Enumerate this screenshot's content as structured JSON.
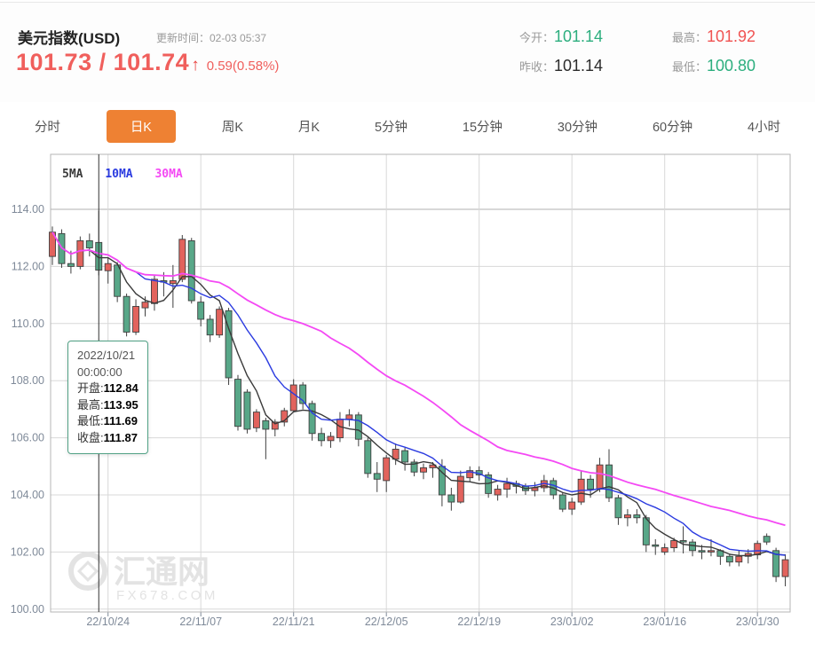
{
  "header": {
    "title": "美元指数(USD)",
    "update_label": "更新时间：02-03 05:37",
    "bid": "101.73",
    "separator": " / ",
    "ask": "101.74",
    "arrow": "↑",
    "change": "0.59(0.58%)",
    "price_color": "#f05f5c",
    "stats": [
      {
        "label": "今开：",
        "value": "101.14",
        "color": "green"
      },
      {
        "label": "昨收：",
        "value": "101.14",
        "color": "dark"
      },
      {
        "label": "最高：",
        "value": "101.92",
        "color": "red"
      },
      {
        "label": "最低：",
        "value": "100.80",
        "color": "green"
      }
    ]
  },
  "tabs": {
    "active": "日K",
    "items": [
      {
        "label": "分时"
      },
      {
        "label": "日K"
      },
      {
        "label": "周K"
      },
      {
        "label": "月K"
      },
      {
        "label": "5分钟"
      },
      {
        "label": "15分钟"
      },
      {
        "label": "30分钟"
      },
      {
        "label": "60分钟"
      },
      {
        "label": "4小时"
      }
    ]
  },
  "legend": {
    "items": [
      {
        "label": "5MA",
        "color": "#3a3a3a"
      },
      {
        "label": "10MA",
        "color": "#2b3be0"
      },
      {
        "label": "30MA",
        "color": "#f449f4"
      }
    ]
  },
  "tooltip": {
    "date": "2022/10/21",
    "time": "00:00:00",
    "rows": [
      {
        "label": "开盘:",
        "value": "112.84"
      },
      {
        "label": "最高:",
        "value": "113.95"
      },
      {
        "label": "最低:",
        "value": "111.69"
      },
      {
        "label": "收盘:",
        "value": "111.87"
      }
    ]
  },
  "watermark": {
    "name": "汇通网",
    "site": "FX678.COM"
  },
  "chart_data": {
    "type": "candlestick",
    "title": "美元指数(USD) 日K",
    "ylim": [
      100,
      114.6
    ],
    "grid": true,
    "y_ticks": [
      114,
      112,
      110,
      108,
      106,
      104,
      102,
      100
    ],
    "x_tick_labels": [
      "22/10/24",
      "22/11/07",
      "22/11/21",
      "22/12/05",
      "22/12/19",
      "23/01/02",
      "23/01/16",
      "23/01/30"
    ],
    "x_tick_indices": [
      6,
      16,
      26,
      36,
      46,
      56,
      66,
      76
    ],
    "selected_index": 5,
    "ma_periods": [
      5,
      10,
      30
    ],
    "colors": {
      "up": "#e2635d",
      "down": "#58a788",
      "candle_stroke": "#3f3f3f",
      "ma5": "#3a3a3a",
      "ma10": "#2b3be0",
      "ma30": "#f449f4",
      "grid": "#d8d8d8",
      "border": "#b5b5b5",
      "axis_text": "#7f8a99",
      "crosshair": "#333333",
      "watermark": "#e3e3e3"
    },
    "candles": [
      {
        "d": "22/10/14",
        "o": 112.35,
        "h": 113.4,
        "l": 112.05,
        "c": 113.2
      },
      {
        "d": "22/10/17",
        "o": 113.15,
        "h": 113.3,
        "l": 111.95,
        "c": 112.1
      },
      {
        "d": "22/10/18",
        "o": 112.1,
        "h": 112.55,
        "l": 111.75,
        "c": 112.0
      },
      {
        "d": "22/10/19",
        "o": 112.0,
        "h": 113.05,
        "l": 111.9,
        "c": 112.9
      },
      {
        "d": "22/10/20",
        "o": 112.9,
        "h": 113.15,
        "l": 112.35,
        "c": 112.65
      },
      {
        "d": "22/10/21",
        "o": 112.84,
        "h": 113.95,
        "l": 111.69,
        "c": 111.87
      },
      {
        "d": "22/10/24",
        "o": 111.85,
        "h": 112.3,
        "l": 111.4,
        "c": 112.1
      },
      {
        "d": "22/10/25",
        "o": 112.05,
        "h": 112.15,
        "l": 110.75,
        "c": 110.95
      },
      {
        "d": "22/10/26",
        "o": 110.95,
        "h": 111.05,
        "l": 109.55,
        "c": 109.7
      },
      {
        "d": "22/10/27",
        "o": 109.7,
        "h": 110.85,
        "l": 109.6,
        "c": 110.6
      },
      {
        "d": "22/10/28",
        "o": 110.55,
        "h": 110.95,
        "l": 110.25,
        "c": 110.75
      },
      {
        "d": "22/10/31",
        "o": 110.7,
        "h": 111.7,
        "l": 110.45,
        "c": 111.55
      },
      {
        "d": "22/11/01",
        "o": 111.5,
        "h": 111.8,
        "l": 110.95,
        "c": 111.45
      },
      {
        "d": "22/11/02",
        "o": 111.4,
        "h": 112.05,
        "l": 110.55,
        "c": 111.5
      },
      {
        "d": "22/11/03",
        "o": 111.55,
        "h": 113.1,
        "l": 111.45,
        "c": 112.95
      },
      {
        "d": "22/11/04",
        "o": 112.9,
        "h": 113.0,
        "l": 110.7,
        "c": 110.8
      },
      {
        "d": "22/11/07",
        "o": 110.75,
        "h": 110.95,
        "l": 109.9,
        "c": 110.15
      },
      {
        "d": "22/11/08",
        "o": 110.15,
        "h": 110.3,
        "l": 109.35,
        "c": 109.6
      },
      {
        "d": "22/11/09",
        "o": 109.6,
        "h": 110.6,
        "l": 109.5,
        "c": 110.5
      },
      {
        "d": "22/11/10",
        "o": 110.45,
        "h": 110.55,
        "l": 107.85,
        "c": 108.1
      },
      {
        "d": "22/11/11",
        "o": 108.05,
        "h": 108.2,
        "l": 106.25,
        "c": 106.4
      },
      {
        "d": "22/11/14",
        "o": 107.6,
        "h": 107.7,
        "l": 106.15,
        "c": 106.3
      },
      {
        "d": "22/11/15",
        "o": 106.35,
        "h": 107.0,
        "l": 106.2,
        "c": 106.9
      },
      {
        "d": "22/11/16",
        "o": 106.6,
        "h": 106.7,
        "l": 105.25,
        "c": 106.3
      },
      {
        "d": "22/11/17",
        "o": 106.3,
        "h": 106.65,
        "l": 106.05,
        "c": 106.55
      },
      {
        "d": "22/11/18",
        "o": 106.55,
        "h": 107.05,
        "l": 106.4,
        "c": 106.95
      },
      {
        "d": "22/11/21",
        "o": 106.95,
        "h": 108.05,
        "l": 106.9,
        "c": 107.85
      },
      {
        "d": "22/11/22",
        "o": 107.85,
        "h": 107.95,
        "l": 107.0,
        "c": 107.2
      },
      {
        "d": "22/11/23",
        "o": 107.2,
        "h": 107.3,
        "l": 105.9,
        "c": 106.15
      },
      {
        "d": "22/11/24",
        "o": 106.15,
        "h": 106.35,
        "l": 105.7,
        "c": 105.9
      },
      {
        "d": "22/11/25",
        "o": 105.9,
        "h": 106.2,
        "l": 105.65,
        "c": 106.05
      },
      {
        "d": "22/11/28",
        "o": 106.0,
        "h": 106.9,
        "l": 105.85,
        "c": 106.65
      },
      {
        "d": "22/11/29",
        "o": 106.65,
        "h": 107.0,
        "l": 106.4,
        "c": 106.8
      },
      {
        "d": "22/11/30",
        "o": 106.8,
        "h": 106.9,
        "l": 105.7,
        "c": 105.95
      },
      {
        "d": "22/12/01",
        "o": 105.9,
        "h": 106.0,
        "l": 104.6,
        "c": 104.75
      },
      {
        "d": "22/12/02",
        "o": 104.75,
        "h": 105.15,
        "l": 104.1,
        "c": 104.55
      },
      {
        "d": "22/12/05",
        "o": 104.5,
        "h": 105.4,
        "l": 104.1,
        "c": 105.3
      },
      {
        "d": "22/12/06",
        "o": 105.25,
        "h": 105.8,
        "l": 105.05,
        "c": 105.6
      },
      {
        "d": "22/12/07",
        "o": 105.55,
        "h": 105.65,
        "l": 104.85,
        "c": 105.15
      },
      {
        "d": "22/12/08",
        "o": 105.15,
        "h": 105.25,
        "l": 104.65,
        "c": 104.8
      },
      {
        "d": "22/12/09",
        "o": 104.8,
        "h": 105.1,
        "l": 104.55,
        "c": 104.95
      },
      {
        "d": "22/12/12",
        "o": 104.95,
        "h": 105.15,
        "l": 104.6,
        "c": 105.05
      },
      {
        "d": "22/12/13",
        "o": 105.0,
        "h": 105.25,
        "l": 103.6,
        "c": 104.0
      },
      {
        "d": "22/12/14",
        "o": 104.0,
        "h": 104.25,
        "l": 103.45,
        "c": 103.75
      },
      {
        "d": "22/12/15",
        "o": 103.75,
        "h": 104.85,
        "l": 103.7,
        "c": 104.65
      },
      {
        "d": "22/12/16",
        "o": 104.6,
        "h": 105.0,
        "l": 104.45,
        "c": 104.85
      },
      {
        "d": "22/12/19",
        "o": 104.85,
        "h": 105.0,
        "l": 104.5,
        "c": 104.7
      },
      {
        "d": "22/12/20",
        "o": 104.7,
        "h": 104.8,
        "l": 103.9,
        "c": 104.05
      },
      {
        "d": "22/12/21",
        "o": 104.0,
        "h": 104.35,
        "l": 103.8,
        "c": 104.2
      },
      {
        "d": "22/12/22",
        "o": 104.2,
        "h": 104.6,
        "l": 103.9,
        "c": 104.4
      },
      {
        "d": "22/12/23",
        "o": 104.4,
        "h": 104.5,
        "l": 104.05,
        "c": 104.3
      },
      {
        "d": "22/12/26",
        "o": 104.3,
        "h": 104.4,
        "l": 104.0,
        "c": 104.15
      },
      {
        "d": "22/12/27",
        "o": 104.15,
        "h": 104.45,
        "l": 103.95,
        "c": 104.25
      },
      {
        "d": "22/12/28",
        "o": 104.25,
        "h": 104.7,
        "l": 104.1,
        "c": 104.5
      },
      {
        "d": "22/12/29",
        "o": 104.5,
        "h": 104.6,
        "l": 103.85,
        "c": 104.0
      },
      {
        "d": "22/12/30",
        "o": 104.0,
        "h": 104.1,
        "l": 103.4,
        "c": 103.5
      },
      {
        "d": "23/01/02",
        "o": 103.5,
        "h": 103.9,
        "l": 103.3,
        "c": 103.75
      },
      {
        "d": "23/01/03",
        "o": 103.75,
        "h": 104.85,
        "l": 103.65,
        "c": 104.55
      },
      {
        "d": "23/01/04",
        "o": 104.55,
        "h": 104.7,
        "l": 103.9,
        "c": 104.2
      },
      {
        "d": "23/01/05",
        "o": 104.2,
        "h": 105.3,
        "l": 104.1,
        "c": 105.05
      },
      {
        "d": "23/01/06",
        "o": 105.05,
        "h": 105.6,
        "l": 103.75,
        "c": 103.9
      },
      {
        "d": "23/01/09",
        "o": 103.9,
        "h": 104.0,
        "l": 102.95,
        "c": 103.2
      },
      {
        "d": "23/01/10",
        "o": 103.2,
        "h": 103.5,
        "l": 102.9,
        "c": 103.3
      },
      {
        "d": "23/01/11",
        "o": 103.3,
        "h": 103.5,
        "l": 103.0,
        "c": 103.2
      },
      {
        "d": "23/01/12",
        "o": 103.2,
        "h": 103.3,
        "l": 102.0,
        "c": 102.25
      },
      {
        "d": "23/01/13",
        "o": 102.25,
        "h": 102.45,
        "l": 101.9,
        "c": 102.2
      },
      {
        "d": "23/01/16",
        "o": 102.0,
        "h": 102.3,
        "l": 101.9,
        "c": 102.15
      },
      {
        "d": "23/01/17",
        "o": 102.15,
        "h": 102.5,
        "l": 102.0,
        "c": 102.4
      },
      {
        "d": "23/01/18",
        "o": 102.4,
        "h": 102.9,
        "l": 101.95,
        "c": 102.35
      },
      {
        "d": "23/01/19",
        "o": 102.35,
        "h": 102.45,
        "l": 101.85,
        "c": 102.05
      },
      {
        "d": "23/01/20",
        "o": 102.05,
        "h": 102.25,
        "l": 101.75,
        "c": 102.0
      },
      {
        "d": "23/01/23",
        "o": 102.0,
        "h": 102.45,
        "l": 101.85,
        "c": 102.05
      },
      {
        "d": "23/01/24",
        "o": 102.05,
        "h": 102.1,
        "l": 101.55,
        "c": 101.85
      },
      {
        "d": "23/01/25",
        "o": 101.85,
        "h": 101.95,
        "l": 101.5,
        "c": 101.65
      },
      {
        "d": "23/01/26",
        "o": 101.65,
        "h": 102.05,
        "l": 101.5,
        "c": 101.85
      },
      {
        "d": "23/01/27",
        "o": 101.85,
        "h": 102.1,
        "l": 101.6,
        "c": 101.95
      },
      {
        "d": "23/01/30",
        "o": 101.9,
        "h": 102.4,
        "l": 101.75,
        "c": 102.3
      },
      {
        "d": "23/01/31",
        "o": 102.55,
        "h": 102.65,
        "l": 102.25,
        "c": 102.35
      },
      {
        "d": "23/02/01",
        "o": 102.05,
        "h": 102.15,
        "l": 100.95,
        "c": 101.14
      },
      {
        "d": "23/02/02",
        "o": 101.14,
        "h": 101.92,
        "l": 100.8,
        "c": 101.73
      }
    ]
  }
}
